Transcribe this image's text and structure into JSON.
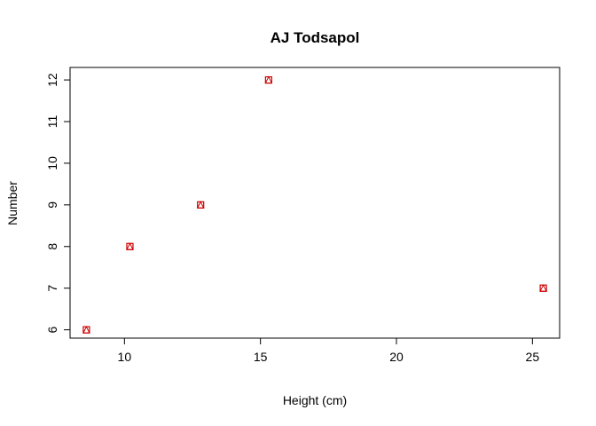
{
  "chart_data": {
    "type": "scatter",
    "title": "AJ Todsapol",
    "xlabel": "Height (cm)",
    "ylabel": "Number",
    "xlim": [
      8,
      26
    ],
    "ylim": [
      5.8,
      12.3
    ],
    "xticks": [
      10,
      15,
      20,
      25
    ],
    "yticks": [
      6,
      7,
      8,
      9,
      10,
      11,
      12
    ],
    "grid": false,
    "legend": "none",
    "marker_color": "#cc0000",
    "points": [
      {
        "x": 8.6,
        "y": 6
      },
      {
        "x": 10.2,
        "y": 8
      },
      {
        "x": 12.8,
        "y": 9
      },
      {
        "x": 15.3,
        "y": 12
      },
      {
        "x": 25.4,
        "y": 7
      }
    ]
  }
}
